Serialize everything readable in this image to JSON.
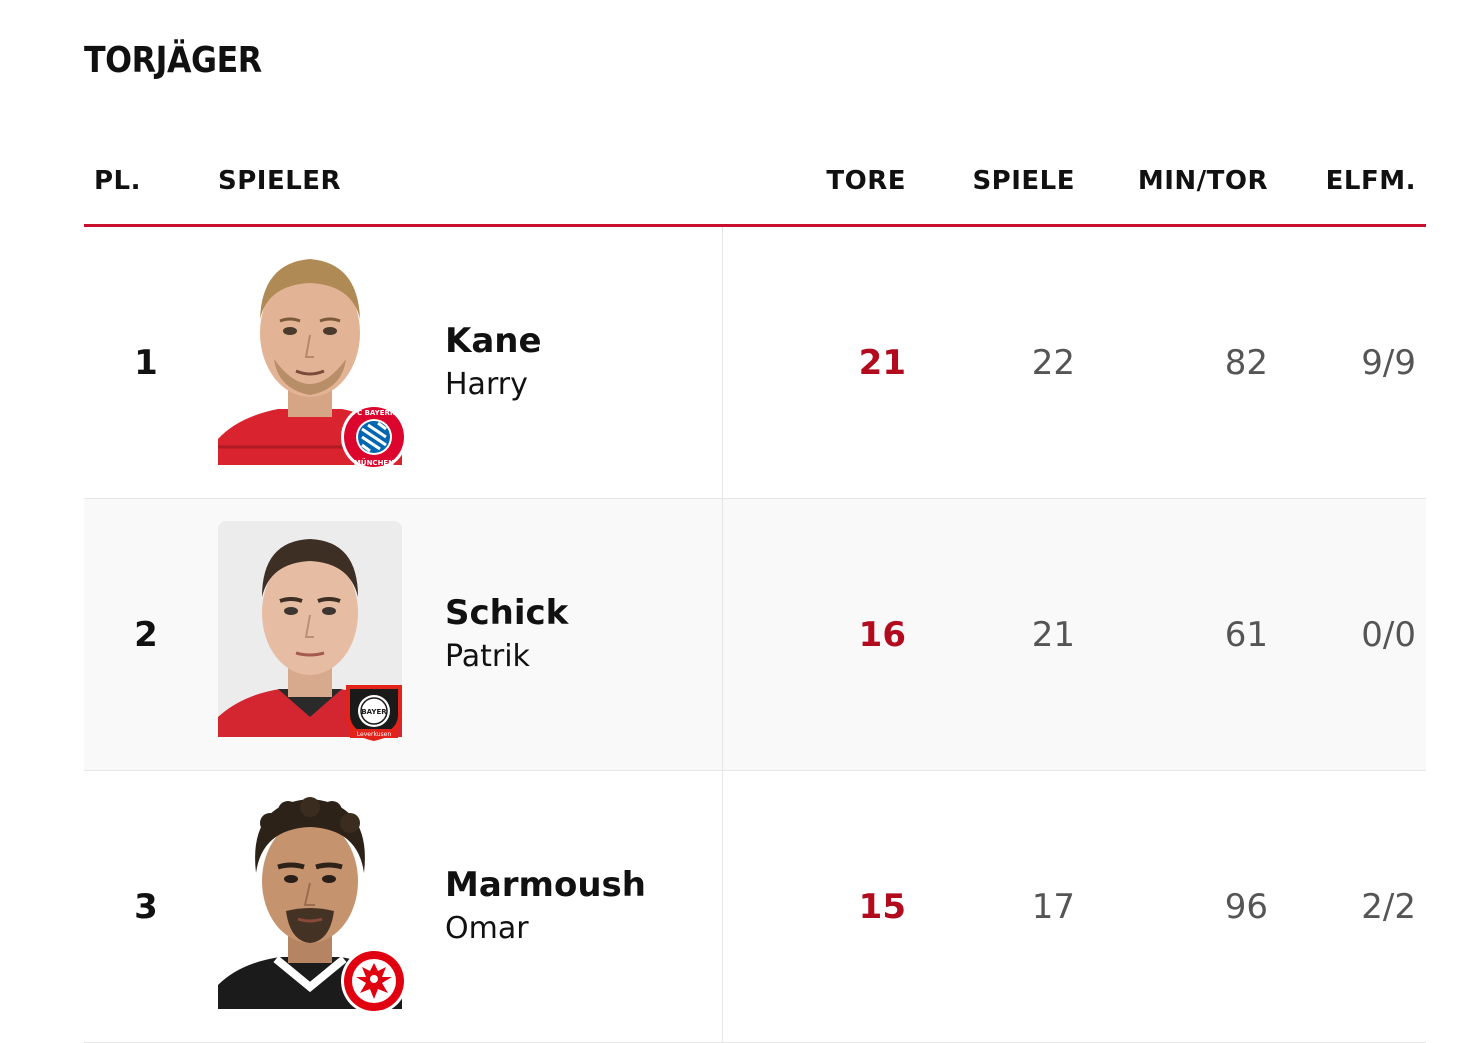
{
  "title": "TORJÄGER",
  "headers": {
    "pl": "PL.",
    "spieler": "SPIELER",
    "tore": "TORE",
    "spiele": "SPIELE",
    "min_tor": "MIN/TOR",
    "elfm": "ELFM."
  },
  "colors": {
    "accent": "#c8102e",
    "goals": "#b30b1e"
  },
  "players": [
    {
      "rank": "1",
      "last_name": "Kane",
      "first_name": "Harry",
      "tore": "21",
      "spiele": "22",
      "min_tor": "82",
      "elfm": "9/9",
      "club_badge": "fc-bayern-muenchen-badge-icon",
      "badge_text": "FC BAYERN MÜNCHEN"
    },
    {
      "rank": "2",
      "last_name": "Schick",
      "first_name": "Patrik",
      "tore": "16",
      "spiele": "21",
      "min_tor": "61",
      "elfm": "0/0",
      "club_badge": "bayer-leverkusen-badge-icon",
      "badge_text": "BAYER Leverkusen"
    },
    {
      "rank": "3",
      "last_name": "Marmoush",
      "first_name": "Omar",
      "tore": "15",
      "spiele": "17",
      "min_tor": "96",
      "elfm": "2/2",
      "club_badge": "eintracht-frankfurt-badge-icon"
    }
  ]
}
